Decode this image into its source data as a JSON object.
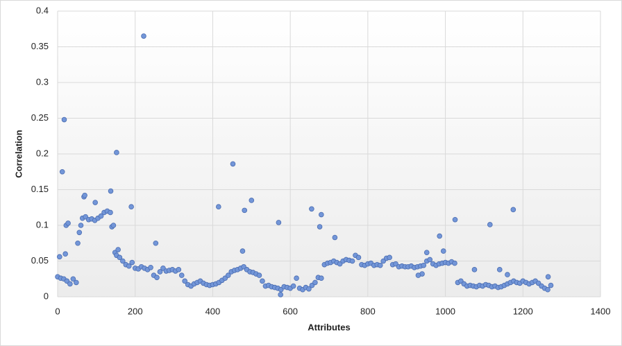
{
  "chart_data": {
    "type": "scatter",
    "x_label": "Attributes",
    "y_label": "Correlation",
    "color": "#7396d8",
    "grid": true,
    "xlim": [
      0,
      1400
    ],
    "xticks": [
      0,
      200,
      400,
      600,
      800,
      1000,
      1200,
      1400
    ],
    "ylim": [
      0,
      0.4
    ],
    "yticks": [
      0,
      0.05,
      0.1,
      0.15,
      0.2,
      0.25,
      0.3,
      0.35,
      0.4
    ],
    "x": [
      0,
      8,
      16,
      24,
      32,
      40,
      48,
      52,
      56,
      60,
      64,
      72,
      80,
      88,
      96,
      104,
      112,
      120,
      128,
      136,
      140,
      144,
      148,
      152,
      156,
      160,
      168,
      176,
      184,
      192,
      200,
      208,
      216,
      224,
      232,
      240,
      248,
      256,
      264,
      272,
      280,
      288,
      296,
      304,
      312,
      320,
      328,
      336,
      344,
      352,
      360,
      368,
      376,
      384,
      392,
      400,
      408,
      416,
      424,
      432,
      440,
      448,
      456,
      464,
      472,
      480,
      488,
      496,
      504,
      512,
      520,
      528,
      536,
      544,
      552,
      560,
      568,
      576,
      584,
      592,
      600,
      608,
      616,
      624,
      632,
      640,
      648,
      656,
      664,
      672,
      680,
      688,
      696,
      704,
      712,
      720,
      728,
      736,
      744,
      752,
      760,
      768,
      776,
      784,
      792,
      800,
      808,
      816,
      824,
      832,
      840,
      848,
      856,
      864,
      872,
      880,
      888,
      896,
      904,
      912,
      920,
      928,
      936,
      944,
      952,
      960,
      968,
      976,
      984,
      992,
      1000,
      1008,
      1016,
      1024,
      1032,
      1040,
      1048,
      1056,
      1064,
      1072,
      1080,
      1088,
      1096,
      1104,
      1112,
      1120,
      1128,
      1136,
      1144,
      1152,
      1160,
      1168,
      1176,
      1184,
      1192,
      1200,
      1208,
      1216,
      1224,
      1232,
      1240,
      1248,
      1256,
      1264,
      1272,
      5,
      12,
      17,
      20,
      22,
      27,
      97,
      137,
      152,
      190,
      222,
      253,
      415,
      452,
      477,
      482,
      500,
      570,
      575,
      655,
      676,
      680,
      715,
      952,
      985,
      995,
      1025,
      1115,
      1140,
      1160,
      1175,
      1075,
      1265,
      940,
      930,
      68,
      70
    ],
    "values": [
      0.028,
      0.026,
      0.025,
      0.022,
      0.018,
      0.025,
      0.02,
      0.075,
      0.09,
      0.1,
      0.11,
      0.112,
      0.108,
      0.109,
      0.107,
      0.11,
      0.113,
      0.118,
      0.12,
      0.118,
      0.098,
      0.1,
      0.062,
      0.058,
      0.066,
      0.055,
      0.05,
      0.045,
      0.043,
      0.048,
      0.04,
      0.039,
      0.042,
      0.04,
      0.038,
      0.041,
      0.03,
      0.027,
      0.035,
      0.04,
      0.036,
      0.037,
      0.038,
      0.036,
      0.038,
      0.03,
      0.022,
      0.017,
      0.015,
      0.018,
      0.02,
      0.022,
      0.019,
      0.017,
      0.016,
      0.017,
      0.018,
      0.02,
      0.023,
      0.026,
      0.03,
      0.035,
      0.037,
      0.038,
      0.04,
      0.042,
      0.038,
      0.035,
      0.034,
      0.032,
      0.03,
      0.022,
      0.015,
      0.016,
      0.014,
      0.013,
      0.012,
      0.01,
      0.014,
      0.013,
      0.012,
      0.015,
      0.026,
      0.012,
      0.01,
      0.013,
      0.011,
      0.016,
      0.02,
      0.027,
      0.026,
      0.045,
      0.047,
      0.048,
      0.05,
      0.048,
      0.046,
      0.05,
      0.052,
      0.051,
      0.05,
      0.058,
      0.055,
      0.045,
      0.044,
      0.046,
      0.047,
      0.044,
      0.045,
      0.044,
      0.05,
      0.054,
      0.055,
      0.045,
      0.046,
      0.042,
      0.043,
      0.042,
      0.042,
      0.043,
      0.041,
      0.042,
      0.043,
      0.044,
      0.05,
      0.052,
      0.046,
      0.044,
      0.046,
      0.047,
      0.048,
      0.047,
      0.049,
      0.047,
      0.02,
      0.022,
      0.018,
      0.015,
      0.016,
      0.015,
      0.014,
      0.016,
      0.015,
      0.017,
      0.016,
      0.014,
      0.015,
      0.013,
      0.014,
      0.016,
      0.018,
      0.02,
      0.022,
      0.02,
      0.019,
      0.022,
      0.02,
      0.018,
      0.02,
      0.022,
      0.019,
      0.015,
      0.012,
      0.01,
      0.016,
      0.056,
      0.175,
      0.248,
      0.06,
      0.1,
      0.103,
      0.132,
      0.148,
      0.202,
      0.126,
      0.365,
      0.075,
      0.126,
      0.186,
      0.064,
      0.121,
      0.135,
      0.104,
      0.003,
      0.123,
      0.098,
      0.115,
      0.083,
      0.062,
      0.085,
      0.064,
      0.108,
      0.101,
      0.038,
      0.031,
      0.122,
      0.038,
      0.028,
      0.032,
      0.03,
      0.14,
      0.142
    ]
  }
}
